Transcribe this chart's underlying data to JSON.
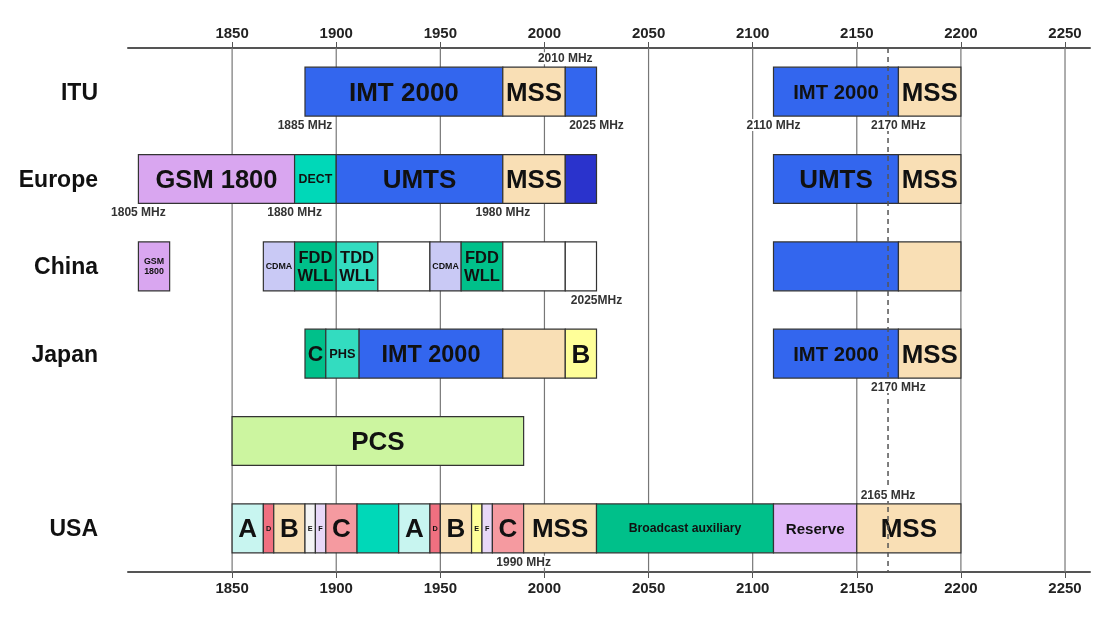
{
  "chart_data": {
    "type": "bar",
    "orientation": "horizontal",
    "categories": [
      "ITU",
      "Europe",
      "China",
      "Japan",
      null,
      "USA"
    ],
    "xlim": [
      1800,
      2262
    ],
    "xticks": [
      1850,
      1900,
      1950,
      2000,
      2050,
      2100,
      2150,
      2200,
      2250
    ],
    "x2lim": [
      1800,
      2262
    ],
    "x2ticks": [
      1850,
      1900,
      1950,
      2000,
      2050,
      2100,
      2150,
      2200,
      2250
    ],
    "grid": "x",
    "ref_lines": [
      {
        "axis": "x",
        "value": 2165,
        "label": "2165 MHz",
        "line_style": "dashed",
        "color": "#555555"
      }
    ],
    "series": [
      {
        "base": [
          1885,
          1805,
          1805,
          1885,
          1850,
          1850
        ],
        "values": [
          95,
          75,
          15,
          10,
          140,
          15
        ],
        "colors": [
          "#3366ee",
          "#d9a6f0",
          "#d9a6f0",
          "#00c08a",
          "#ccf5a0",
          "#c8f5f0"
        ],
        "value_labels": [
          "IMT 2000",
          "GSM 1800",
          "GSM\n1800",
          "C",
          "PCS",
          "A"
        ]
      },
      {
        "base": [
          1980,
          1880,
          1865,
          1895,
          null,
          1865
        ],
        "values": [
          30,
          20,
          15,
          16,
          null,
          5
        ],
        "colors": [
          "#f9dfb5",
          "#00d8b8",
          "#c9c9f5",
          "#33dcc0",
          null,
          "#f07080"
        ],
        "value_labels": [
          "MSS",
          "DECT",
          "CDMA",
          "PHS",
          null,
          "D"
        ]
      },
      {
        "base": [
          2010,
          1900,
          1880,
          1911,
          null,
          1870
        ],
        "values": [
          15,
          80,
          20,
          69,
          null,
          15
        ],
        "colors": [
          "#3366ee",
          "#3366ee",
          "#00c08a",
          "#3366ee",
          null,
          "#f9dfb5"
        ],
        "value_labels": [
          null,
          "UMTS",
          "FDD\nWLL",
          "IMT 2000",
          null,
          "B"
        ]
      },
      {
        "base": [
          2110,
          1980,
          1900,
          1980,
          null,
          1885
        ],
        "values": [
          60,
          30,
          20,
          30,
          null,
          5
        ],
        "colors": [
          "#3366ee",
          "#f9dfb5",
          "#33dcc0",
          "#f9dfb5",
          null,
          "#f4f4f4"
        ],
        "value_labels": [
          "IMT 2000",
          "MSS",
          "TDD\nWLL",
          null,
          null,
          "E"
        ]
      },
      {
        "base": [
          2170,
          2010,
          1920,
          2010,
          null,
          1890
        ],
        "values": [
          30,
          15,
          25,
          15,
          null,
          5
        ],
        "colors": [
          "#f9dfb5",
          "#2a33cc",
          "#ffffff",
          "#ffff99",
          null,
          "#e8d8f8"
        ],
        "value_labels": [
          "MSS",
          null,
          null,
          "B",
          null,
          "F"
        ]
      },
      {
        "base": [
          null,
          2110,
          1945,
          2110,
          null,
          1895
        ],
        "values": [
          null,
          60,
          15,
          60,
          null,
          15
        ],
        "colors": [
          null,
          "#3366ee",
          "#c9c9f5",
          "#3366ee",
          null,
          "#f59aa0"
        ],
        "value_labels": [
          null,
          "UMTS",
          "CDMA",
          "IMT 2000",
          null,
          "C"
        ]
      },
      {
        "base": [
          null,
          2170,
          1960,
          2170,
          null,
          1910
        ],
        "values": [
          null,
          30,
          20,
          30,
          null,
          20
        ],
        "colors": [
          null,
          "#f9dfb5",
          "#00c08a",
          "#f9dfb5",
          null,
          "#00d8b8"
        ],
        "value_labels": [
          null,
          "MSS",
          "FDD\nWLL",
          "MSS",
          null,
          null
        ]
      },
      {
        "base": [
          null,
          null,
          1980,
          null,
          null,
          1930
        ],
        "values": [
          null,
          null,
          30,
          null,
          null,
          15
        ],
        "colors": [
          null,
          null,
          "#ffffff",
          null,
          null,
          "#c8f5f0"
        ],
        "value_labels": [
          null,
          null,
          null,
          null,
          null,
          "A"
        ]
      },
      {
        "base": [
          null,
          null,
          2010,
          null,
          null,
          1945
        ],
        "values": [
          null,
          null,
          15,
          null,
          null,
          5
        ],
        "colors": [
          null,
          null,
          "#ffffff",
          null,
          null,
          "#f07080"
        ],
        "value_labels": [
          null,
          null,
          null,
          null,
          null,
          "D"
        ]
      },
      {
        "base": [
          null,
          null,
          2110,
          null,
          null,
          1950
        ],
        "values": [
          null,
          null,
          60,
          null,
          null,
          15
        ],
        "colors": [
          null,
          null,
          "#3366ee",
          null,
          null,
          "#f9dfb5"
        ],
        "value_labels": [
          null,
          null,
          null,
          null,
          null,
          "B"
        ]
      },
      {
        "base": [
          null,
          null,
          2170,
          null,
          null,
          1965
        ],
        "values": [
          null,
          null,
          30,
          null,
          null,
          5
        ],
        "colors": [
          null,
          null,
          "#f9dfb5",
          null,
          null,
          "#ffff99"
        ],
        "value_labels": [
          null,
          null,
          null,
          null,
          null,
          "E"
        ]
      },
      {
        "base": [
          null,
          null,
          null,
          null,
          null,
          1970
        ],
        "values": [
          null,
          null,
          null,
          null,
          null,
          5
        ],
        "colors": [
          null,
          null,
          null,
          null,
          null,
          "#e8d8f8"
        ],
        "value_labels": [
          null,
          null,
          null,
          null,
          null,
          "F"
        ]
      },
      {
        "base": [
          null,
          null,
          null,
          null,
          null,
          1975
        ],
        "values": [
          null,
          null,
          null,
          null,
          null,
          15
        ],
        "colors": [
          null,
          null,
          null,
          null,
          null,
          "#f59aa0"
        ],
        "value_labels": [
          null,
          null,
          null,
          null,
          null,
          "C"
        ]
      },
      {
        "base": [
          null,
          null,
          null,
          null,
          null,
          1990
        ],
        "values": [
          null,
          null,
          null,
          null,
          null,
          35
        ],
        "colors": [
          null,
          null,
          null,
          null,
          null,
          "#f9dfb5"
        ],
        "value_labels": [
          null,
          null,
          null,
          null,
          null,
          "MSS"
        ]
      },
      {
        "base": [
          null,
          null,
          null,
          null,
          null,
          2025
        ],
        "values": [
          null,
          null,
          null,
          null,
          null,
          85
        ],
        "colors": [
          null,
          null,
          null,
          null,
          null,
          "#00c08a"
        ],
        "value_labels": [
          null,
          null,
          null,
          null,
          null,
          "Broadcast auxiliary"
        ]
      },
      {
        "base": [
          null,
          null,
          null,
          null,
          null,
          2110
        ],
        "values": [
          null,
          null,
          null,
          null,
          null,
          40
        ],
        "colors": [
          null,
          null,
          null,
          null,
          null,
          "#e0b8f8"
        ],
        "value_labels": [
          null,
          null,
          null,
          null,
          null,
          "Reserve"
        ]
      },
      {
        "base": [
          null,
          null,
          null,
          null,
          null,
          2150
        ],
        "values": [
          null,
          null,
          null,
          null,
          null,
          50
        ],
        "colors": [
          null,
          null,
          null,
          null,
          null,
          "#f9dfb5"
        ],
        "value_labels": [
          null,
          null,
          null,
          null,
          null,
          "MSS"
        ]
      }
    ],
    "annotations": [
      {
        "text": "1885 MHz",
        "x": 1885,
        "y": "ITU"
      },
      {
        "text": "2025 MHz",
        "x": 2025,
        "y": "ITU"
      },
      {
        "text": "2010 MHz",
        "x": 2010,
        "y": "ITU"
      },
      {
        "text": "2110 MHz",
        "x": 2110,
        "y": "ITU"
      },
      {
        "text": "2170 MHz",
        "x": 2170,
        "y": "ITU"
      },
      {
        "text": "1805 MHz",
        "x": 1805,
        "y": "Europe"
      },
      {
        "text": "1880 MHz",
        "x": 1880,
        "y": "Europe"
      },
      {
        "text": "1980 MHz",
        "x": 1980,
        "y": "Europe"
      },
      {
        "text": "2025MHz",
        "x": 2025,
        "y": "China"
      },
      {
        "text": "2170 MHz",
        "x": 2170,
        "y": "Japan"
      },
      {
        "text": "1990 MHz",
        "x": 1990,
        "y": "USA"
      }
    ]
  }
}
